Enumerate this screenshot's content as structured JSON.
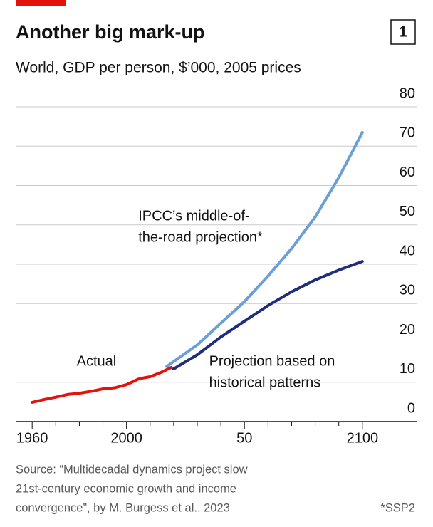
{
  "chart_data": {
    "type": "line",
    "title": "Another big mark-up",
    "chart_number": "1",
    "subtitle": "World, GDP per person, $’000, 2005 prices",
    "xlim": [
      1953,
      2123
    ],
    "xticks": [
      1960,
      2000,
      {
        "value": 2050,
        "label": "50"
      },
      2100
    ],
    "xminor_ticks": [
      1970,
      1980,
      1990,
      2010,
      2020,
      2030,
      2040,
      2060,
      2070,
      2080,
      2090
    ],
    "ylim": [
      0,
      80
    ],
    "yticks": [
      0,
      10,
      20,
      30,
      40,
      50,
      60,
      70,
      80
    ],
    "grid": true,
    "series": [
      {
        "color": "#e3120b",
        "x": [
          1960,
          1965,
          1970,
          1975,
          1980,
          1985,
          1990,
          1995,
          2000,
          2005,
          2008,
          2010,
          2015,
          2019
        ],
        "values": [
          4.9,
          5.6,
          6.2,
          6.9,
          7.2,
          7.7,
          8.3,
          8.6,
          9.4,
          10.8,
          11.2,
          11.4,
          12.6,
          13.8
        ]
      },
      {
        "color": "#6a9fd8",
        "x": [
          2017,
          2030,
          2040,
          2050,
          2060,
          2070,
          2080,
          2090,
          2100
        ],
        "values": [
          14,
          19.5,
          25,
          30.5,
          37,
          44,
          52,
          62,
          73.5
        ]
      },
      {
        "color": "#1f2e7a",
        "x": [
          2020,
          2030,
          2040,
          2050,
          2060,
          2070,
          2080,
          2090,
          2100
        ],
        "values": [
          13.4,
          17,
          21.5,
          25.5,
          29.5,
          33,
          36,
          38.5,
          40.7
        ]
      }
    ],
    "annotations": [
      {
        "lines": [
          "Actual"
        ],
        "x": 2000,
        "y": 13.5
      },
      {
        "lines": [
          "IPCC’s middle-of-",
          "the-road projection*"
        ],
        "x": 2005,
        "y": 50.5
      },
      {
        "lines": [
          "Projection based on",
          "historical patterns"
        ],
        "x": 2035,
        "y": 13.5
      }
    ],
    "source": [
      "Source: “Multidecadal dynamics project slow",
      "21st-century economic growth and income",
      "convergence”, by M. Burgess et al., 2023"
    ],
    "footnote": "*SSP2"
  }
}
